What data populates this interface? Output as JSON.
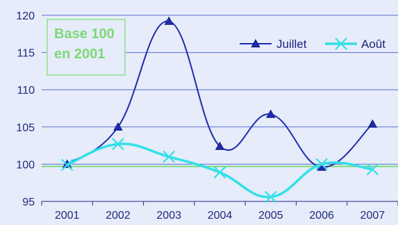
{
  "chart_data": {
    "type": "line",
    "title": "",
    "xlabel": "",
    "ylabel": "",
    "categories": [
      "2001",
      "2002",
      "2003",
      "2004",
      "2005",
      "2006",
      "2007"
    ],
    "ylim": [
      95,
      120
    ],
    "yticks": [
      95,
      100,
      105,
      110,
      115,
      120
    ],
    "grid": true,
    "legend": "top-right",
    "annotation": {
      "line1": "Base 100",
      "line2": "en 2001"
    },
    "series": [
      {
        "name": "Juillet",
        "values": [
          100,
          105,
          119.2,
          102.4,
          106.7,
          99.6,
          105.4
        ],
        "color": "#1f2bb0",
        "marker": "triangle"
      },
      {
        "name": "Août",
        "values": [
          99.9,
          102.7,
          101,
          98.9,
          95.6,
          100,
          99.3
        ],
        "color": "#33e0e8",
        "marker": "x"
      }
    ],
    "reference_line": {
      "value": 99.7,
      "color": "#7dd87a"
    }
  }
}
